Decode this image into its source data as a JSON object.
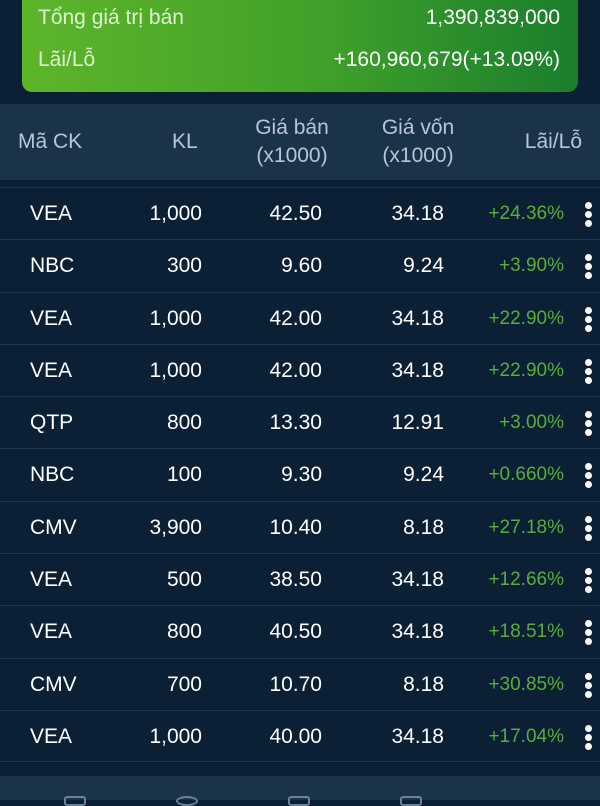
{
  "summary": {
    "total_label": "Tổng giá trị bán",
    "total_value": "1,390,839,000",
    "pl_label": "Lãi/Lỗ",
    "pl_value": "+160,960,679(+13.09%)"
  },
  "table": {
    "headers": {
      "symbol": "Mã CK",
      "qty": "KL",
      "sell_l1": "Giá bán",
      "sell_l2": "(x1000)",
      "cost_l1": "Giá vốn",
      "cost_l2": "(x1000)",
      "pl": "Lãi/Lỗ"
    },
    "rows": [
      {
        "symbol": "VEA",
        "qty": "1,000",
        "sell": "42.50",
        "cost": "34.18",
        "pl": "+24.36%"
      },
      {
        "symbol": "NBC",
        "qty": "300",
        "sell": "9.60",
        "cost": "9.24",
        "pl": "+3.90%"
      },
      {
        "symbol": "VEA",
        "qty": "1,000",
        "sell": "42.00",
        "cost": "34.18",
        "pl": "+22.90%"
      },
      {
        "symbol": "VEA",
        "qty": "1,000",
        "sell": "42.00",
        "cost": "34.18",
        "pl": "+22.90%"
      },
      {
        "symbol": "QTP",
        "qty": "800",
        "sell": "13.30",
        "cost": "12.91",
        "pl": "+3.00%"
      },
      {
        "symbol": "NBC",
        "qty": "100",
        "sell": "9.30",
        "cost": "9.24",
        "pl": "+0.660%"
      },
      {
        "symbol": "CMV",
        "qty": "3,900",
        "sell": "10.40",
        "cost": "8.18",
        "pl": "+27.18%"
      },
      {
        "symbol": "VEA",
        "qty": "500",
        "sell": "38.50",
        "cost": "34.18",
        "pl": "+12.66%"
      },
      {
        "symbol": "VEA",
        "qty": "800",
        "sell": "40.50",
        "cost": "34.18",
        "pl": "+18.51%"
      },
      {
        "symbol": "CMV",
        "qty": "700",
        "sell": "10.70",
        "cost": "8.18",
        "pl": "+30.85%"
      },
      {
        "symbol": "VEA",
        "qty": "1,000",
        "sell": "40.00",
        "cost": "34.18",
        "pl": "+17.04%"
      }
    ]
  },
  "colors": {
    "profit": "#58ad3c",
    "background": "#0b1f35",
    "header": "#1b3349"
  }
}
